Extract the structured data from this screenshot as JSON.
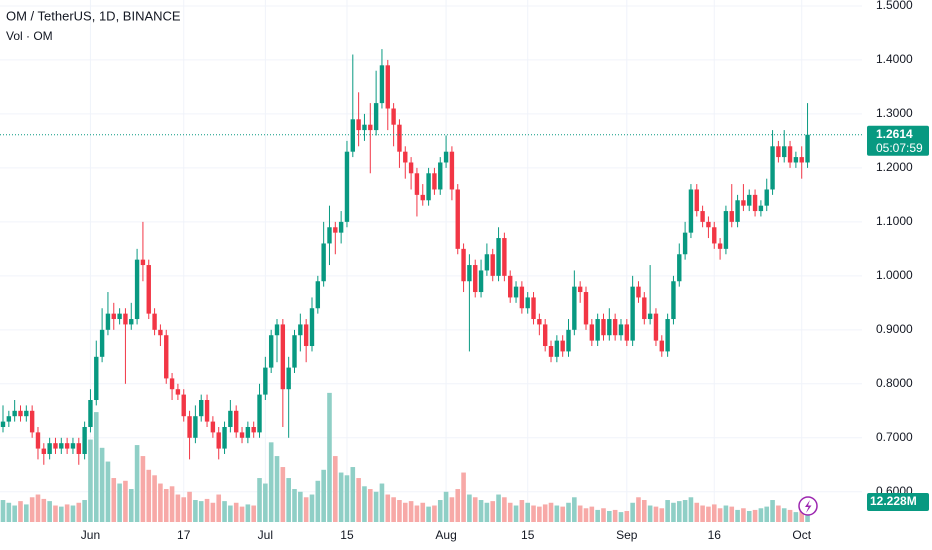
{
  "chart_data": {
    "type": "candlestick",
    "title": "OM / TetherUS, 1D, BINANCE",
    "volume_title": "Vol · OM",
    "categories": [
      null,
      null,
      null,
      null,
      null,
      null,
      null,
      null,
      null,
      null,
      null,
      null,
      null,
      null,
      null,
      "Jun",
      null,
      null,
      null,
      null,
      null,
      null,
      null,
      null,
      null,
      null,
      null,
      null,
      null,
      null,
      null,
      "17",
      null,
      null,
      null,
      null,
      null,
      null,
      null,
      null,
      null,
      null,
      null,
      null,
      null,
      "Jul",
      null,
      null,
      null,
      null,
      null,
      null,
      null,
      null,
      null,
      null,
      null,
      null,
      null,
      "15",
      null,
      null,
      null,
      null,
      null,
      null,
      null,
      null,
      null,
      null,
      null,
      null,
      null,
      null,
      null,
      null,
      "Aug",
      null,
      null,
      null,
      null,
      null,
      null,
      null,
      null,
      null,
      null,
      null,
      null,
      null,
      "15",
      null,
      null,
      null,
      null,
      null,
      null,
      null,
      null,
      null,
      null,
      null,
      null,
      null,
      null,
      null,
      null,
      "Sep",
      null,
      null,
      null,
      null,
      null,
      null,
      null,
      null,
      null,
      null,
      null,
      null,
      null,
      null,
      "16",
      null,
      null,
      null,
      null,
      null,
      null,
      null,
      null,
      null,
      null,
      null,
      null,
      null,
      null,
      "Oct",
      null
    ],
    "open": [
      0.72,
      0.73,
      0.74,
      0.75,
      0.74,
      0.75,
      0.71,
      0.68,
      0.67,
      0.69,
      0.68,
      0.69,
      0.68,
      0.69,
      0.67,
      0.72,
      0.77,
      0.85,
      0.9,
      0.93,
      0.92,
      0.93,
      0.91,
      0.92,
      1.03,
      1.02,
      0.93,
      0.9,
      0.89,
      0.81,
      0.79,
      0.78,
      0.74,
      0.7,
      0.74,
      0.77,
      0.73,
      0.71,
      0.68,
      0.72,
      0.75,
      0.71,
      0.7,
      0.72,
      0.71,
      0.78,
      0.83,
      0.89,
      0.91,
      0.79,
      0.83,
      0.89,
      0.91,
      0.87,
      0.94,
      0.99,
      1.06,
      1.09,
      1.08,
      1.1,
      1.23,
      1.29,
      1.27,
      1.28,
      1.27,
      1.32,
      1.39,
      1.31,
      1.28,
      1.23,
      1.21,
      1.19,
      1.15,
      1.14,
      1.19,
      1.16,
      1.21,
      1.23,
      1.16,
      1.05,
      0.99,
      1.02,
      0.97,
      1.01,
      1.04,
      1.0,
      1.07,
      1.0,
      0.96,
      0.98,
      0.94,
      0.96,
      0.92,
      0.91,
      0.87,
      0.85,
      0.88,
      0.86,
      0.9,
      0.98,
      0.97,
      0.91,
      0.88,
      0.92,
      0.89,
      0.92,
      0.89,
      0.91,
      0.88,
      0.98,
      0.96,
      0.92,
      0.93,
      0.88,
      0.86,
      0.92,
      0.99,
      1.04,
      1.08,
      1.16,
      1.12,
      1.1,
      1.09,
      1.06,
      1.05,
      1.12,
      1.1,
      1.14,
      1.13,
      1.15,
      1.12,
      1.13,
      1.16,
      1.24,
      1.22,
      1.24,
      1.21,
      1.22,
      1.21
    ],
    "high": [
      0.76,
      0.75,
      0.77,
      0.76,
      0.76,
      0.76,
      0.72,
      0.69,
      0.7,
      0.7,
      0.7,
      0.7,
      0.7,
      0.7,
      0.73,
      0.79,
      0.88,
      0.94,
      0.97,
      0.95,
      0.94,
      0.94,
      0.95,
      1.05,
      1.1,
      1.03,
      0.94,
      0.91,
      0.9,
      0.82,
      0.8,
      0.79,
      0.75,
      0.76,
      0.78,
      0.78,
      0.74,
      0.72,
      0.73,
      0.77,
      0.76,
      0.72,
      0.73,
      0.73,
      0.8,
      0.85,
      0.9,
      0.92,
      0.92,
      0.85,
      0.9,
      0.93,
      0.92,
      0.96,
      1.0,
      1.1,
      1.13,
      1.1,
      1.12,
      1.25,
      1.41,
      1.34,
      1.3,
      1.32,
      1.38,
      1.42,
      1.4,
      1.32,
      1.29,
      1.24,
      1.22,
      1.2,
      1.17,
      1.2,
      1.2,
      1.22,
      1.26,
      1.24,
      1.17,
      1.06,
      1.04,
      1.03,
      1.03,
      1.06,
      1.05,
      1.09,
      1.08,
      1.01,
      0.99,
      0.99,
      0.97,
      0.97,
      0.93,
      0.92,
      0.88,
      0.89,
      0.89,
      0.92,
      1.01,
      0.99,
      0.98,
      0.92,
      0.93,
      0.93,
      0.94,
      0.93,
      0.92,
      0.92,
      1.0,
      0.99,
      0.97,
      1.02,
      0.94,
      0.89,
      0.93,
      1.0,
      1.06,
      1.1,
      1.17,
      1.17,
      1.13,
      1.11,
      1.1,
      1.07,
      1.13,
      1.17,
      1.15,
      1.17,
      1.16,
      1.16,
      1.14,
      1.18,
      1.27,
      1.25,
      1.27,
      1.25,
      1.23,
      1.24,
      1.32
    ],
    "low": [
      0.71,
      0.72,
      0.73,
      0.73,
      0.73,
      0.7,
      0.66,
      0.65,
      0.66,
      0.67,
      0.67,
      0.67,
      0.67,
      0.65,
      0.66,
      0.71,
      0.76,
      0.84,
      0.89,
      0.9,
      0.91,
      0.8,
      0.9,
      0.91,
      0.99,
      0.92,
      0.89,
      0.87,
      0.8,
      0.77,
      0.77,
      0.73,
      0.66,
      0.69,
      0.73,
      0.72,
      0.7,
      0.66,
      0.67,
      0.71,
      0.7,
      0.69,
      0.69,
      0.7,
      0.7,
      0.77,
      0.82,
      0.84,
      0.72,
      0.7,
      0.82,
      0.86,
      0.84,
      0.86,
      0.93,
      0.98,
      1.02,
      1.04,
      1.06,
      1.09,
      1.22,
      1.24,
      1.25,
      1.19,
      1.26,
      1.31,
      1.27,
      1.24,
      1.2,
      1.18,
      1.16,
      1.11,
      1.13,
      1.13,
      1.15,
      1.15,
      1.2,
      1.14,
      1.04,
      0.97,
      0.86,
      0.96,
      0.96,
      1.0,
      0.99,
      0.99,
      0.99,
      0.95,
      0.95,
      0.93,
      0.93,
      0.91,
      0.89,
      0.86,
      0.84,
      0.84,
      0.85,
      0.85,
      0.89,
      0.95,
      0.9,
      0.87,
      0.87,
      0.88,
      0.88,
      0.88,
      0.88,
      0.87,
      0.87,
      0.95,
      0.91,
      0.91,
      0.87,
      0.85,
      0.85,
      0.91,
      0.98,
      1.03,
      1.07,
      1.11,
      1.09,
      1.07,
      1.05,
      1.03,
      1.04,
      1.09,
      1.09,
      1.12,
      1.12,
      1.11,
      1.11,
      1.12,
      1.15,
      1.21,
      1.21,
      1.2,
      1.2,
      1.18,
      1.2
    ],
    "close": [
      0.73,
      0.74,
      0.75,
      0.74,
      0.75,
      0.71,
      0.68,
      0.67,
      0.69,
      0.68,
      0.69,
      0.68,
      0.69,
      0.67,
      0.72,
      0.77,
      0.85,
      0.9,
      0.93,
      0.92,
      0.93,
      0.91,
      0.92,
      1.03,
      1.02,
      0.93,
      0.9,
      0.89,
      0.81,
      0.79,
      0.78,
      0.74,
      0.7,
      0.74,
      0.77,
      0.73,
      0.71,
      0.68,
      0.72,
      0.75,
      0.71,
      0.7,
      0.72,
      0.71,
      0.78,
      0.83,
      0.89,
      0.91,
      0.79,
      0.83,
      0.89,
      0.91,
      0.87,
      0.94,
      0.99,
      1.06,
      1.09,
      1.08,
      1.1,
      1.23,
      1.29,
      1.27,
      1.28,
      1.27,
      1.32,
      1.39,
      1.31,
      1.28,
      1.23,
      1.21,
      1.19,
      1.15,
      1.14,
      1.19,
      1.16,
      1.21,
      1.23,
      1.16,
      1.05,
      0.99,
      1.02,
      0.97,
      1.01,
      1.04,
      1.0,
      1.07,
      1.0,
      0.96,
      0.98,
      0.94,
      0.96,
      0.92,
      0.91,
      0.87,
      0.85,
      0.88,
      0.86,
      0.9,
      0.98,
      0.97,
      0.91,
      0.88,
      0.92,
      0.89,
      0.92,
      0.89,
      0.91,
      0.88,
      0.98,
      0.96,
      0.92,
      0.93,
      0.88,
      0.86,
      0.92,
      0.99,
      1.04,
      1.08,
      1.16,
      1.12,
      1.1,
      1.09,
      1.06,
      1.05,
      1.12,
      1.1,
      1.14,
      1.13,
      1.15,
      1.12,
      1.13,
      1.16,
      1.24,
      1.22,
      1.24,
      1.21,
      1.22,
      1.21,
      1.2614
    ],
    "volume": [
      40,
      35,
      30,
      38,
      32,
      45,
      50,
      42,
      38,
      30,
      28,
      32,
      30,
      35,
      40,
      150,
      200,
      135,
      110,
      80,
      70,
      75,
      60,
      140,
      120,
      95,
      85,
      70,
      60,
      65,
      50,
      45,
      55,
      40,
      38,
      42,
      35,
      50,
      38,
      30,
      35,
      28,
      32,
      30,
      80,
      70,
      145,
      120,
      100,
      80,
      60,
      55,
      45,
      50,
      75,
      95,
      235,
      120,
      90,
      85,
      100,
      80,
      65,
      60,
      55,
      70,
      50,
      45,
      40,
      35,
      38,
      30,
      35,
      28,
      30,
      40,
      55,
      45,
      60,
      90,
      50,
      45,
      40,
      35,
      38,
      50,
      45,
      35,
      30,
      40,
      35,
      30,
      28,
      32,
      35,
      30,
      28,
      35,
      45,
      30,
      25,
      28,
      22,
      25,
      20,
      22,
      18,
      20,
      35,
      45,
      40,
      30,
      28,
      25,
      40,
      35,
      38,
      40,
      45,
      35,
      30,
      28,
      32,
      25,
      30,
      28,
      22,
      25,
      20,
      22,
      25,
      28,
      40,
      30,
      25,
      22,
      18,
      20,
      12.228
    ],
    "last_volume_label": "12.228M",
    "volume_ylim": [
      0,
      950
    ],
    "up_color": "#089981",
    "down_color": "#f23645",
    "up_volume_color": "#8fcfc6",
    "down_volume_color": "#f7a9a7",
    "ylim": [
      0.544,
      1.511
    ],
    "yticks": [
      {
        "value": 1.5,
        "label": "1.5000"
      },
      {
        "value": 1.4,
        "label": "1.4000"
      },
      {
        "value": 1.3,
        "label": "1.3000"
      },
      {
        "value": 1.2,
        "label": "1.2000"
      },
      {
        "value": 1.1,
        "label": "1.1000"
      },
      {
        "value": 1.0,
        "label": "1.0000"
      },
      {
        "value": 0.9,
        "label": "0.9000"
      },
      {
        "value": 0.8,
        "label": "0.8000"
      },
      {
        "value": 0.7,
        "label": "0.7000"
      },
      {
        "value": 0.6,
        "label": "0.6000"
      }
    ],
    "last_price": 1.2614,
    "countdown": "05:07:59",
    "grid": true
  }
}
